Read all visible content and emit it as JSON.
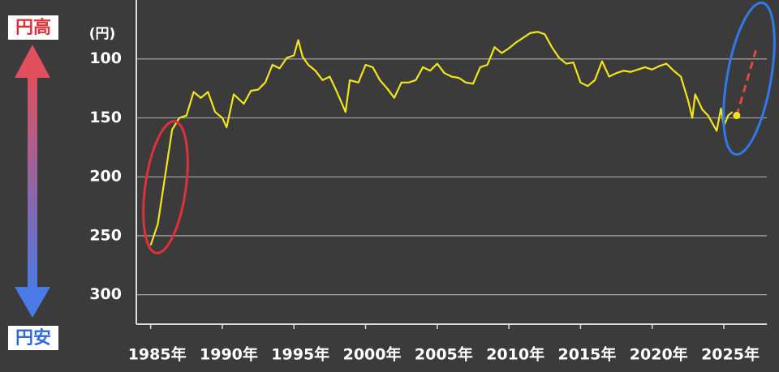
{
  "chart_data": {
    "type": "line",
    "invert_y": true,
    "xlim": [
      1984,
      2028
    ],
    "ylim": [
      50,
      325
    ],
    "yticks": [
      100,
      150,
      200,
      250,
      300
    ],
    "xticks": [
      {
        "value": 1985,
        "label": "1985年"
      },
      {
        "value": 1990,
        "label": "1990年"
      },
      {
        "value": 1995,
        "label": "1995年"
      },
      {
        "value": 2000,
        "label": "2000年"
      },
      {
        "value": 2005,
        "label": "2005年"
      },
      {
        "value": 2010,
        "label": "2010年"
      },
      {
        "value": 2015,
        "label": "2015年"
      },
      {
        "value": 2020,
        "label": "2020年"
      },
      {
        "value": 2025,
        "label": "2025年"
      }
    ],
    "grid": true,
    "annotations": {
      "unit": "(円)",
      "top": "円高",
      "bottom": "円安"
    },
    "series": [
      {
        "color": "#f2e51c",
        "dash": false,
        "x": [
          1985.0,
          1985.5,
          1986.0,
          1986.5,
          1987.0,
          1987.5,
          1988.0,
          1988.5,
          1989.0,
          1989.5,
          1990.0,
          1990.3,
          1990.8,
          1991.5,
          1992.0,
          1992.5,
          1993.0,
          1993.5,
          1994.0,
          1994.5,
          1995.0,
          1995.3,
          1995.6,
          1996.0,
          1996.5,
          1997.0,
          1997.5,
          1998.0,
          1998.6,
          1998.9,
          1999.5,
          2000.0,
          2000.5,
          2001.0,
          2001.5,
          2002.0,
          2002.5,
          2003.0,
          2003.5,
          2004.0,
          2004.5,
          2005.0,
          2005.5,
          2006.0,
          2006.5,
          2007.0,
          2007.5,
          2008.0,
          2008.5,
          2009.0,
          2009.5,
          2010.0,
          2010.5,
          2011.0,
          2011.5,
          2012.0,
          2012.5,
          2013.0,
          2013.5,
          2014.0,
          2014.5,
          2015.0,
          2015.5,
          2016.0,
          2016.5,
          2017.0,
          2017.5,
          2018.0,
          2018.5,
          2019.0,
          2019.5,
          2020.0,
          2020.5,
          2021.0,
          2021.5,
          2022.0,
          2022.5,
          2022.8,
          2023.0,
          2023.5,
          2023.9,
          2024.5,
          2024.8,
          2025.0,
          2025.3,
          2025.6
        ],
        "values": [
          258,
          240,
          200,
          160,
          150,
          148,
          128,
          133,
          128,
          145,
          150,
          158,
          130,
          138,
          127,
          126,
          120,
          105,
          108,
          99,
          97,
          84,
          98,
          105,
          110,
          118,
          115,
          128,
          145,
          118,
          120,
          105,
          107,
          118,
          125,
          133,
          120,
          120,
          118,
          107,
          110,
          104,
          112,
          115,
          116,
          120,
          121,
          107,
          105,
          90,
          95,
          91,
          86,
          82,
          78,
          77,
          79,
          90,
          99,
          104,
          103,
          120,
          123,
          118,
          102,
          115,
          112,
          110,
          111,
          109,
          107,
          109,
          106,
          104,
          110,
          115,
          135,
          150,
          130,
          143,
          148,
          161,
          142,
          157,
          148,
          145
        ]
      },
      {
        "color": "#e8463c",
        "dash": true,
        "x": [
          2025.9,
          2027.3
        ],
        "values": [
          148,
          90
        ]
      }
    ]
  }
}
